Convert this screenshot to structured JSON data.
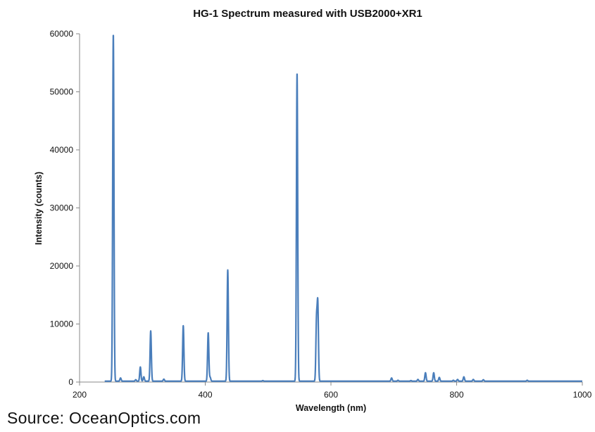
{
  "source_note": "Source: OceanOptics.com",
  "chart_data": {
    "type": "line",
    "title": "HG-1 Spectrum measured with USB2000+XR1",
    "xlabel": "Wavelength (nm)",
    "ylabel": "Intensity (counts)",
    "xlim": [
      200,
      1000
    ],
    "ylim": [
      0,
      60000
    ],
    "x_ticks": [
      200,
      400,
      600,
      800,
      1000
    ],
    "y_ticks": [
      0,
      10000,
      20000,
      30000,
      40000,
      50000,
      60000
    ],
    "grid": false,
    "legend": "none",
    "line_color": "#4a7ebb",
    "baseline": 150,
    "peaks": [
      {
        "x": 253.7,
        "y": 60000
      },
      {
        "x": 265.2,
        "y": 700
      },
      {
        "x": 289.4,
        "y": 400
      },
      {
        "x": 296.7,
        "y": 2600
      },
      {
        "x": 302.2,
        "y": 900
      },
      {
        "x": 313.2,
        "y": 8800
      },
      {
        "x": 334.1,
        "y": 500
      },
      {
        "x": 365.0,
        "y": 9700
      },
      {
        "x": 404.7,
        "y": 8500
      },
      {
        "x": 407.8,
        "y": 800
      },
      {
        "x": 435.8,
        "y": 19300
      },
      {
        "x": 491.6,
        "y": 250
      },
      {
        "x": 546.1,
        "y": 53300
      },
      {
        "x": 577.0,
        "y": 10200
      },
      {
        "x": 579.1,
        "y": 13100
      },
      {
        "x": 696.5,
        "y": 700
      },
      {
        "x": 706.7,
        "y": 300
      },
      {
        "x": 727.3,
        "y": 250
      },
      {
        "x": 738.4,
        "y": 450
      },
      {
        "x": 750.4,
        "y": 1600
      },
      {
        "x": 763.5,
        "y": 1600
      },
      {
        "x": 772.4,
        "y": 800
      },
      {
        "x": 794.8,
        "y": 300
      },
      {
        "x": 801.5,
        "y": 450
      },
      {
        "x": 811.5,
        "y": 900
      },
      {
        "x": 826.5,
        "y": 450
      },
      {
        "x": 842.5,
        "y": 400
      },
      {
        "x": 912.3,
        "y": 300
      }
    ]
  }
}
